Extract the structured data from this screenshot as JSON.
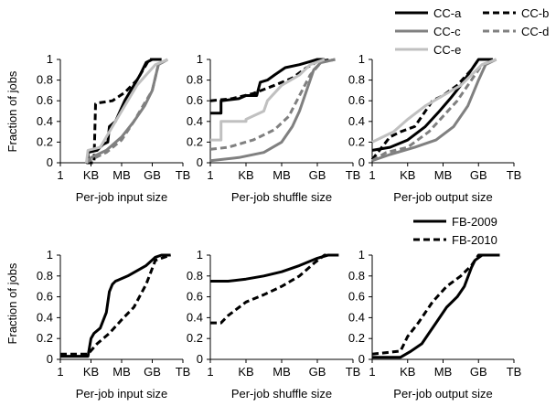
{
  "figure": {
    "ylabel": "Fraction of jobs",
    "legend_top": [
      {
        "label": "CC-a",
        "color": "#000000",
        "dash": false
      },
      {
        "label": "CC-b",
        "color": "#000000",
        "dash": true
      },
      {
        "label": "CC-c",
        "color": "#808080",
        "dash": false
      },
      {
        "label": "CC-d",
        "color": "#808080",
        "dash": true
      },
      {
        "label": "CC-e",
        "color": "#c0c0c0",
        "dash": false
      }
    ],
    "legend_bottom": [
      {
        "label": "FB-2009",
        "color": "#000000",
        "dash": false
      },
      {
        "label": "FB-2010",
        "color": "#000000",
        "dash": true
      }
    ]
  },
  "chart_data": [
    {
      "type": "line",
      "panel": "top-left",
      "xlabel": "Per-job input size",
      "ylabel": "Fraction of jobs",
      "xticks": [
        "1",
        "KB",
        "MB",
        "GB",
        "TB"
      ],
      "yticks": [
        "0",
        "0.2",
        "0.4",
        "0.6",
        "0.8",
        "1"
      ],
      "xlim": [
        0,
        4
      ],
      "ylim": [
        0,
        1
      ],
      "series": [
        {
          "name": "CC-a",
          "color": "#000000",
          "dash": false,
          "width": 3,
          "x": [
            0.85,
            0.9,
            0.9,
            1.2,
            1.4,
            1.55,
            1.6,
            1.8,
            2.1,
            2.4,
            2.6,
            2.8,
            3.0,
            3.3
          ],
          "y": [
            0.0,
            0.0,
            0.1,
            0.12,
            0.18,
            0.2,
            0.35,
            0.4,
            0.6,
            0.75,
            0.85,
            0.97,
            1.0,
            1.0
          ]
        },
        {
          "name": "CC-b",
          "color": "#000000",
          "dash": true,
          "width": 3,
          "x": [
            0.85,
            1.1,
            1.15,
            1.25,
            1.7,
            2.1,
            2.5,
            2.8,
            2.9,
            3.3
          ],
          "y": [
            0.0,
            0.0,
            0.57,
            0.58,
            0.6,
            0.68,
            0.8,
            0.95,
            1.0,
            1.0
          ]
        },
        {
          "name": "CC-c",
          "color": "#808080",
          "dash": false,
          "width": 3,
          "x": [
            0.85,
            1.0,
            1.5,
            2.0,
            2.4,
            2.75,
            3.0,
            3.2,
            3.5
          ],
          "y": [
            0.0,
            0.05,
            0.12,
            0.25,
            0.4,
            0.55,
            0.7,
            0.95,
            1.0
          ]
        },
        {
          "name": "CC-d",
          "color": "#808080",
          "dash": true,
          "width": 3,
          "x": [
            0.85,
            1.0,
            1.5,
            2.0,
            2.4,
            2.7,
            3.0,
            3.2,
            3.5
          ],
          "y": [
            0.0,
            0.03,
            0.1,
            0.22,
            0.4,
            0.55,
            0.7,
            0.95,
            1.0
          ]
        },
        {
          "name": "CC-e",
          "color": "#c0c0c0",
          "dash": false,
          "width": 3,
          "x": [
            0.85,
            0.9,
            1.3,
            1.8,
            2.2,
            2.5,
            2.8,
            3.1,
            3.5
          ],
          "y": [
            0.0,
            0.12,
            0.15,
            0.4,
            0.6,
            0.75,
            0.85,
            0.95,
            1.0
          ]
        }
      ]
    },
    {
      "type": "line",
      "panel": "top-middle",
      "xlabel": "Per-job shuffle size",
      "ylabel": "",
      "xticks": [
        "1",
        "KB",
        "MB",
        "GB",
        "TB"
      ],
      "yticks": [
        "0",
        "0.2",
        "0.4",
        "0.6",
        "0.8",
        "1"
      ],
      "xlim": [
        0,
        4
      ],
      "ylim": [
        0,
        1
      ],
      "series": [
        {
          "name": "CC-a",
          "color": "#000000",
          "dash": false,
          "width": 3,
          "x": [
            0.0,
            0.3,
            0.3,
            0.8,
            1.0,
            1.3,
            1.4,
            1.6,
            1.8,
            2.1,
            2.5,
            2.8,
            3.0,
            3.2
          ],
          "y": [
            0.48,
            0.48,
            0.6,
            0.62,
            0.65,
            0.65,
            0.78,
            0.8,
            0.85,
            0.92,
            0.95,
            0.98,
            1.0,
            1.0
          ]
        },
        {
          "name": "CC-b",
          "color": "#000000",
          "dash": true,
          "width": 3,
          "x": [
            0.0,
            0.6,
            1.2,
            1.8,
            2.3,
            2.7,
            3.0,
            3.4
          ],
          "y": [
            0.6,
            0.62,
            0.67,
            0.75,
            0.82,
            0.92,
            0.98,
            1.0
          ]
        },
        {
          "name": "CC-c",
          "color": "#808080",
          "dash": false,
          "width": 3,
          "x": [
            0.0,
            0.8,
            1.5,
            2.0,
            2.3,
            2.5,
            2.7,
            2.9,
            3.1,
            3.5
          ],
          "y": [
            0.02,
            0.05,
            0.1,
            0.2,
            0.35,
            0.5,
            0.7,
            0.9,
            0.97,
            1.0
          ]
        },
        {
          "name": "CC-d",
          "color": "#808080",
          "dash": true,
          "width": 3,
          "x": [
            0.0,
            0.5,
            1.2,
            1.8,
            2.2,
            2.5,
            2.8,
            3.1,
            3.5
          ],
          "y": [
            0.13,
            0.15,
            0.22,
            0.32,
            0.45,
            0.65,
            0.85,
            0.97,
            1.0
          ]
        },
        {
          "name": "CC-e",
          "color": "#c0c0c0",
          "dash": false,
          "width": 3,
          "x": [
            0.0,
            0.3,
            0.3,
            1.0,
            1.0,
            1.5,
            1.6,
            2.0,
            2.5,
            2.8,
            3.2
          ],
          "y": [
            0.22,
            0.22,
            0.4,
            0.4,
            0.42,
            0.5,
            0.6,
            0.75,
            0.85,
            0.95,
            1.0
          ]
        }
      ]
    },
    {
      "type": "line",
      "panel": "top-right",
      "xlabel": "Per-job output size",
      "ylabel": "",
      "xticks": [
        "1",
        "KB",
        "MB",
        "GB",
        "TB"
      ],
      "yticks": [
        "0",
        "0.2",
        "0.4",
        "0.6",
        "0.8",
        "1"
      ],
      "xlim": [
        0,
        4
      ],
      "ylim": [
        0,
        1
      ],
      "series": [
        {
          "name": "CC-a",
          "color": "#000000",
          "dash": false,
          "width": 3,
          "x": [
            0.0,
            0.5,
            1.0,
            1.5,
            1.9,
            2.2,
            2.5,
            2.8,
            3.0,
            3.4
          ],
          "y": [
            0.12,
            0.15,
            0.22,
            0.35,
            0.5,
            0.62,
            0.75,
            0.9,
            1.0,
            1.0
          ]
        },
        {
          "name": "CC-b",
          "color": "#000000",
          "dash": true,
          "width": 3,
          "x": [
            0.0,
            0.5,
            0.8,
            1.2,
            1.4,
            1.7,
            2.0,
            2.4,
            2.8,
            3.0,
            3.4
          ],
          "y": [
            0.03,
            0.25,
            0.3,
            0.35,
            0.45,
            0.6,
            0.65,
            0.75,
            0.9,
            1.0,
            1.0
          ]
        },
        {
          "name": "CC-c",
          "color": "#808080",
          "dash": false,
          "width": 3,
          "x": [
            0.0,
            0.5,
            1.2,
            1.8,
            2.3,
            2.7,
            3.0,
            3.2,
            3.5
          ],
          "y": [
            0.02,
            0.08,
            0.15,
            0.22,
            0.35,
            0.55,
            0.8,
            0.95,
            1.0
          ]
        },
        {
          "name": "CC-d",
          "color": "#808080",
          "dash": true,
          "width": 3,
          "x": [
            0.0,
            0.4,
            1.0,
            1.6,
            2.0,
            2.4,
            2.8,
            3.1,
            3.5
          ],
          "y": [
            0.02,
            0.1,
            0.15,
            0.3,
            0.45,
            0.6,
            0.8,
            0.95,
            1.0
          ]
        },
        {
          "name": "CC-e",
          "color": "#c0c0c0",
          "dash": false,
          "width": 3,
          "x": [
            0.0,
            0.6,
            1.0,
            1.5,
            2.0,
            2.5,
            2.8,
            3.1,
            3.5
          ],
          "y": [
            0.2,
            0.3,
            0.42,
            0.55,
            0.65,
            0.75,
            0.85,
            0.95,
            1.0
          ]
        }
      ]
    },
    {
      "type": "line",
      "panel": "bottom-left",
      "xlabel": "Per-job input size",
      "ylabel": "Fraction of jobs",
      "xticks": [
        "1",
        "KB",
        "MB",
        "GB",
        "TB"
      ],
      "yticks": [
        "0",
        "0.2",
        "0.4",
        "0.6",
        "0.8",
        "1"
      ],
      "xlim": [
        0,
        4
      ],
      "ylim": [
        0,
        1
      ],
      "series": [
        {
          "name": "FB-2009",
          "color": "#000000",
          "dash": false,
          "width": 3,
          "x": [
            0.0,
            0.9,
            1.0,
            1.1,
            1.3,
            1.5,
            1.6,
            1.7,
            1.8,
            2.2,
            2.8,
            3.1,
            3.3,
            3.6
          ],
          "y": [
            0.03,
            0.03,
            0.2,
            0.25,
            0.3,
            0.45,
            0.65,
            0.72,
            0.75,
            0.8,
            0.9,
            0.98,
            1.0,
            1.0
          ]
        },
        {
          "name": "FB-2010",
          "color": "#000000",
          "dash": true,
          "width": 3,
          "x": [
            0.0,
            0.9,
            1.2,
            1.6,
            2.0,
            2.4,
            2.8,
            3.1,
            3.6
          ],
          "y": [
            0.05,
            0.05,
            0.15,
            0.25,
            0.38,
            0.5,
            0.72,
            0.95,
            1.0
          ]
        }
      ]
    },
    {
      "type": "line",
      "panel": "bottom-middle",
      "xlabel": "Per-job shuffle size",
      "ylabel": "",
      "xticks": [
        "1",
        "KB",
        "MB",
        "GB",
        "TB"
      ],
      "yticks": [
        "0",
        "0.2",
        "0.4",
        "0.6",
        "0.8",
        "1"
      ],
      "xlim": [
        0,
        4
      ],
      "ylim": [
        0,
        1
      ],
      "series": [
        {
          "name": "FB-2009",
          "color": "#000000",
          "dash": false,
          "width": 3,
          "x": [
            0.0,
            0.5,
            1.0,
            1.5,
            2.0,
            2.5,
            3.0,
            3.3,
            3.6
          ],
          "y": [
            0.75,
            0.75,
            0.77,
            0.8,
            0.84,
            0.9,
            0.97,
            1.0,
            1.0
          ]
        },
        {
          "name": "FB-2010",
          "color": "#000000",
          "dash": true,
          "width": 3,
          "x": [
            0.0,
            0.3,
            0.5,
            1.0,
            1.5,
            2.0,
            2.5,
            2.9,
            3.2,
            3.6
          ],
          "y": [
            0.35,
            0.35,
            0.42,
            0.55,
            0.62,
            0.7,
            0.8,
            0.92,
            1.0,
            1.0
          ]
        }
      ]
    },
    {
      "type": "line",
      "panel": "bottom-right",
      "xlabel": "Per-job output size",
      "ylabel": "",
      "xticks": [
        "1",
        "KB",
        "MB",
        "GB",
        "TB"
      ],
      "yticks": [
        "0",
        "0.2",
        "0.4",
        "0.6",
        "0.8",
        "1"
      ],
      "xlim": [
        0,
        4
      ],
      "ylim": [
        0,
        1
      ],
      "series": [
        {
          "name": "FB-2009",
          "color": "#000000",
          "dash": false,
          "width": 3,
          "x": [
            0.0,
            0.8,
            1.1,
            1.4,
            1.6,
            1.8,
            2.1,
            2.4,
            2.6,
            2.8,
            2.9,
            3.1,
            3.6
          ],
          "y": [
            0.02,
            0.02,
            0.08,
            0.15,
            0.25,
            0.35,
            0.5,
            0.6,
            0.7,
            0.88,
            0.95,
            1.0,
            1.0
          ]
        },
        {
          "name": "FB-2010",
          "color": "#000000",
          "dash": true,
          "width": 3,
          "x": [
            0.0,
            0.8,
            1.0,
            1.3,
            1.7,
            2.1,
            2.5,
            2.8,
            3.0,
            3.6
          ],
          "y": [
            0.05,
            0.08,
            0.22,
            0.35,
            0.55,
            0.7,
            0.8,
            0.9,
            1.0,
            1.0
          ]
        }
      ]
    }
  ]
}
